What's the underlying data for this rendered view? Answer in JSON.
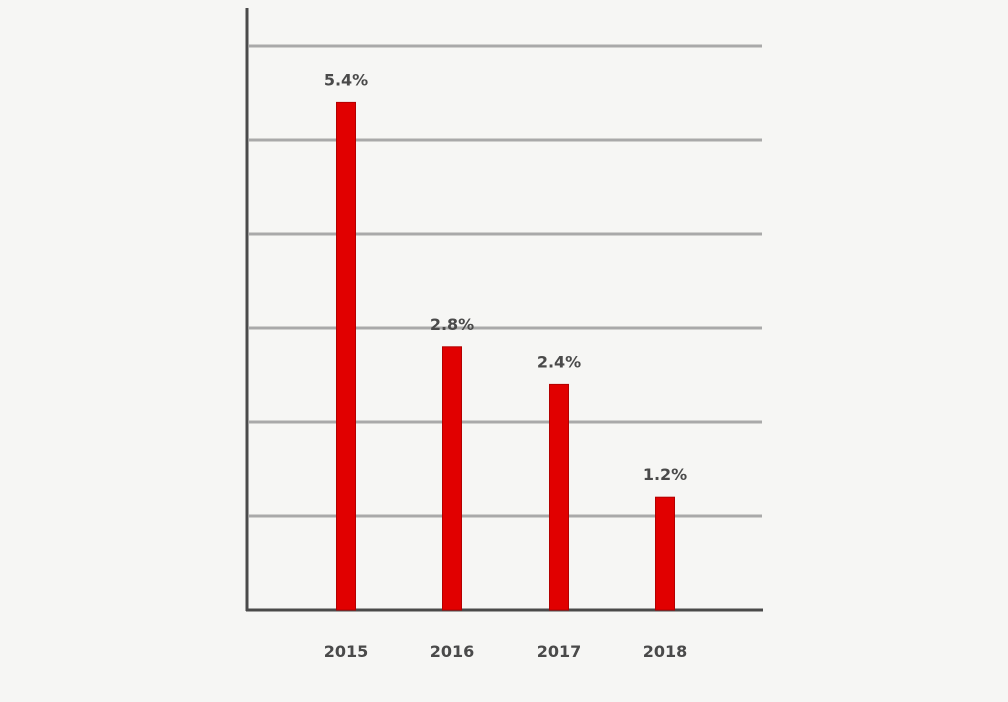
{
  "chart_data": {
    "type": "bar",
    "categories": [
      "2015",
      "2016",
      "2017",
      "2018"
    ],
    "values": [
      5.4,
      2.8,
      2.4,
      1.2
    ],
    "data_labels": [
      "5.4%",
      "2.8%",
      "2.4%",
      "1.2%"
    ],
    "title": "",
    "xlabel": "",
    "ylabel": "",
    "ylim": [
      0,
      6.4
    ],
    "y_gridlines": [
      1,
      2,
      3,
      4,
      5,
      6
    ],
    "grid": true,
    "y_tick_labels_shown": false,
    "legend": "none",
    "colors": {
      "bar": "#e10000",
      "bar_edge": "#b30000",
      "gridline": "#a9a9a9",
      "axis": "#4a4a4a",
      "text": "#4a4a4a",
      "background": "#f6f6f4"
    }
  }
}
